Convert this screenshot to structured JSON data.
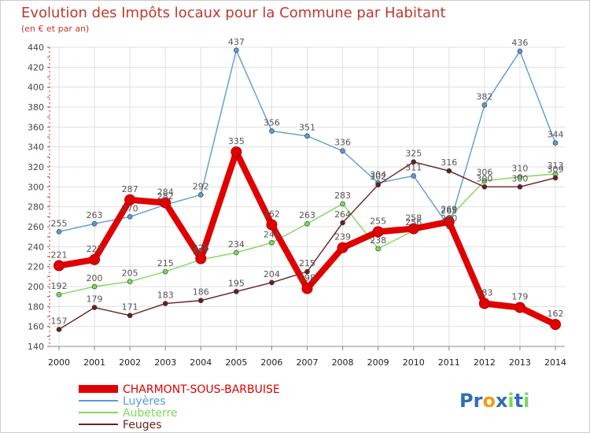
{
  "chart_data": {
    "type": "line",
    "title": "Evolution des Impôts locaux pour la Commune par Habitant",
    "subtitle": "(en € et par an)",
    "x": [
      "2000",
      "2001",
      "2002",
      "2003",
      "2004",
      "2005",
      "2006",
      "2007",
      "2008",
      "2009",
      "2010",
      "2011",
      "2012",
      "2013",
      "2014"
    ],
    "ylim": [
      140,
      440
    ],
    "yticks": [
      140,
      160,
      180,
      200,
      220,
      240,
      260,
      280,
      300,
      320,
      340,
      360,
      380,
      400,
      420,
      440
    ],
    "grid": true,
    "legend_position": "bottom-left",
    "series": [
      {
        "name": "CHARMONT-SOUS-BARBUISE",
        "color": "#e00000",
        "values": [
          221,
          227,
          287,
          284,
          228,
          335,
          262,
          198,
          239,
          255,
          258,
          265,
          183,
          179,
          162
        ]
      },
      {
        "name": "Luyères",
        "color": "#5b9bd5",
        "values": [
          255,
          263,
          270,
          282,
          292,
          437,
          356,
          351,
          336,
          304,
          311,
          260,
          382,
          436,
          344
        ]
      },
      {
        "name": "Aubeterre",
        "color": "#7ed957",
        "values": [
          192,
          200,
          205,
          215,
          227,
          234,
          244,
          263,
          283,
          238,
          256,
          269,
          306,
          310,
          313
        ]
      },
      {
        "name": "Feuges",
        "color": "#6b1f1f",
        "values": [
          157,
          179,
          171,
          183,
          186,
          195,
          204,
          215,
          264,
          302,
          325,
          316,
          300,
          300,
          309
        ]
      }
    ]
  },
  "logo": {
    "text": "Proxiti"
  }
}
